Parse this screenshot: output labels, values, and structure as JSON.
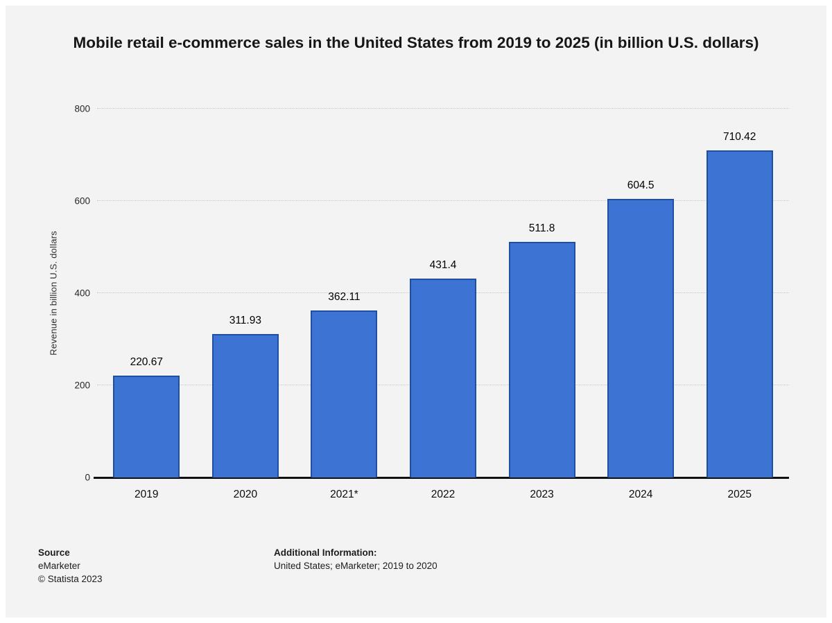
{
  "chart_data": {
    "type": "bar",
    "title": "Mobile retail e-commerce sales in the United States from 2019 to 2025 (in billion U.S. dollars)",
    "categories": [
      "2019",
      "2020",
      "2021*",
      "2022",
      "2023",
      "2024",
      "2025"
    ],
    "values": [
      220.67,
      311.93,
      362.11,
      431.4,
      511.8,
      604.5,
      710.42
    ],
    "value_labels": [
      "220.67",
      "311.93",
      "362.11",
      "431.4",
      "511.8",
      "604.5",
      "710.42"
    ],
    "xlabel": "",
    "ylabel": "Revenue in billion U.S. dollars",
    "ylim": [
      0,
      800
    ],
    "yticks": [
      0,
      200,
      400,
      600,
      800
    ],
    "grid": true,
    "legend": false,
    "colors": {
      "bar_fill": "#3d74d4",
      "bar_border": "#1f4ea3",
      "gridline": "#c7c7c7",
      "axis_line": "#111111"
    }
  },
  "footer": {
    "source_label": "Source",
    "source_lines": [
      "eMarketer",
      "© Statista 2023"
    ],
    "additional_label": "Additional Information:",
    "additional_text": "United States; eMarketer; 2019 to 2020"
  }
}
